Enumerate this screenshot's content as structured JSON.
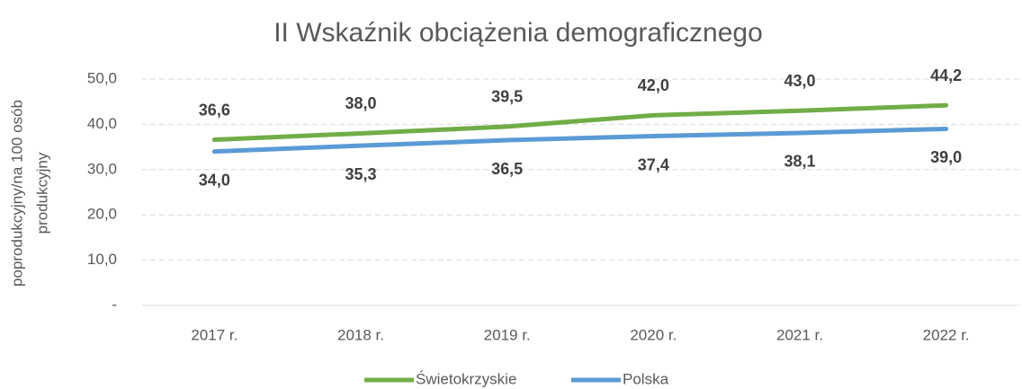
{
  "chart_data": {
    "type": "line",
    "title": "II Wskaźnik obciążenia demograficznego",
    "ylabel": [
      "poprodukcyjny/na 100 osób",
      "produkcyjny"
    ],
    "categories": [
      "2017 r.",
      "2018 r.",
      "2019 r.",
      "2020 r.",
      "2021 r.",
      "2022 r."
    ],
    "series": [
      {
        "name": "Świetokrzyskie",
        "color": "#70ad47",
        "values": [
          36.6,
          38.0,
          39.5,
          42.0,
          43.0,
          44.2
        ],
        "value_labels": [
          "36,6",
          "38,0",
          "39,5",
          "42,0",
          "43,0",
          "44,2"
        ]
      },
      {
        "name": "Polska",
        "color": "#5b9bd5",
        "values": [
          34.0,
          35.3,
          36.5,
          37.4,
          38.1,
          39.0
        ],
        "value_labels": [
          "34,0",
          "35,3",
          "36,5",
          "37,4",
          "38,1",
          "39,0"
        ]
      }
    ],
    "ylim": [
      0,
      50
    ],
    "yticks": [
      {
        "value": 0,
        "label": "-"
      },
      {
        "value": 10,
        "label": "10,0"
      },
      {
        "value": 20,
        "label": "20,0"
      },
      {
        "value": 30,
        "label": "30,0"
      },
      {
        "value": 40,
        "label": "40,0"
      },
      {
        "value": 50,
        "label": "50,0"
      }
    ],
    "grid": true,
    "legend": "bottom"
  }
}
